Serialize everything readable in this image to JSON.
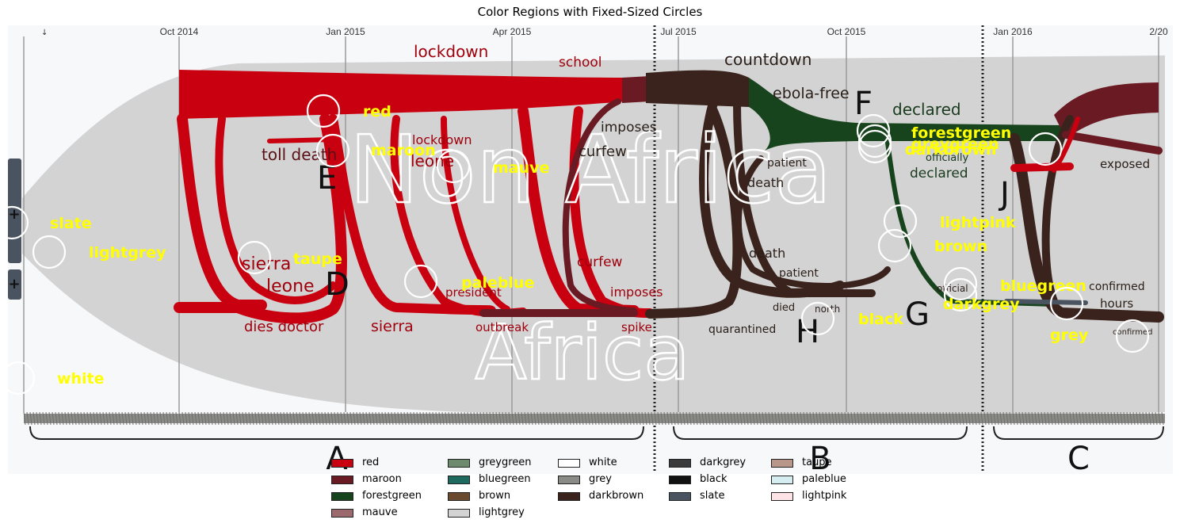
{
  "title": "Color Regions with Fixed-Sized Circles",
  "timeline": {
    "ticks": [
      "Oct 2014",
      "Jan 2015",
      "Apr 2015",
      "Jul 2015",
      "Oct 2015",
      "Jan 2016",
      "2/20"
    ],
    "sections": [
      "A",
      "B",
      "C"
    ],
    "band_labels": [
      "Non Africa",
      "Africa"
    ],
    "markers": [
      "+",
      "+"
    ]
  },
  "stream_terms": {
    "red": [
      "lockdown",
      "school",
      "toll death",
      "lockdown",
      "leone",
      "sierra",
      "leone",
      "president",
      "dies doctor",
      "sierra",
      "outbreak",
      "curfew",
      "imposes",
      "spike"
    ],
    "dark": [
      "countdown",
      "ebola-free",
      "imposes",
      "curfew",
      "patient",
      "death",
      "death",
      "patient",
      "died",
      "north",
      "quarantined",
      "declared",
      "officially",
      "declared",
      "exposed",
      "confirmed",
      "hours",
      "official",
      "confirmed"
    ],
    "letters": [
      "E",
      "D",
      "F",
      "G",
      "H",
      "J"
    ]
  },
  "circle_labels": [
    "red",
    "maroon",
    "mauve",
    "slate",
    "lightgrey",
    "taupe",
    "paleblue",
    "white",
    "forestgreen",
    "greygreen",
    "darkbrown",
    "lightpink",
    "brown",
    "bluegreen",
    "darkgrey",
    "black",
    "grey"
  ],
  "legend": [
    {
      "label": "red",
      "color": "#c8000f"
    },
    {
      "label": "maroon",
      "color": "#6a1a22"
    },
    {
      "label": "forestgreen",
      "color": "#17441c"
    },
    {
      "label": "mauve",
      "color": "#9a6a6e"
    },
    {
      "label": "greygreen",
      "color": "#6e8a6e"
    },
    {
      "label": "bluegreen",
      "color": "#1f6a5e"
    },
    {
      "label": "brown",
      "color": "#6a4a2e"
    },
    {
      "label": "lightgrey",
      "color": "#d3d3d3"
    },
    {
      "label": "white",
      "color": "#ffffff"
    },
    {
      "label": "grey",
      "color": "#8a8a86"
    },
    {
      "label": "darkbrown",
      "color": "#3a231c"
    },
    {
      "label": "darkgrey",
      "color": "#3a3a3a"
    },
    {
      "label": "black",
      "color": "#111111"
    },
    {
      "label": "slate",
      "color": "#4a5460"
    },
    {
      "label": "taupe",
      "color": "#b8978a"
    },
    {
      "label": "paleblue",
      "color": "#d6eef2"
    },
    {
      "label": "lightpink",
      "color": "#fde3e6"
    }
  ],
  "colors": {
    "red_stream": "#c8000f",
    "dark_stream": "#3a231c",
    "green_stream": "#17441c",
    "maroon_stream": "#6a1a22",
    "background_band": "#d3d3d3",
    "panel_bg": "#f7f8fa",
    "label": "#ffff00",
    "circle": "#ffffff"
  }
}
